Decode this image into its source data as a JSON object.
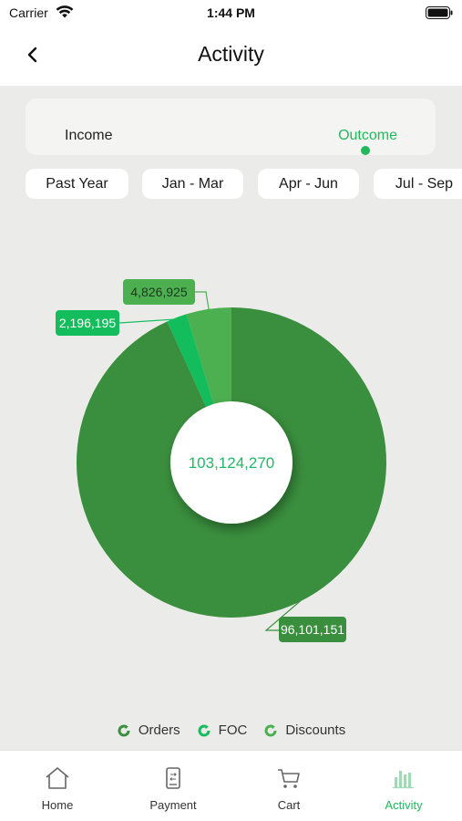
{
  "status": {
    "carrier": "Carrier",
    "time": "1:44 PM"
  },
  "header": {
    "title": "Activity"
  },
  "segments": {
    "income": "Income",
    "outcome": "Outcome",
    "selected": "outcome"
  },
  "filters": [
    "Past Year",
    "Jan - Mar",
    "Apr - Jun",
    "Jul - Sep"
  ],
  "chart_data": {
    "type": "pie",
    "center_label": "103,124,270",
    "series": [
      {
        "name": "Orders",
        "value": 96101151,
        "label": "96,101,151",
        "color": "#3a8f3e"
      },
      {
        "name": "FOC",
        "value": 2196195,
        "label": "2,196,195",
        "color": "#14bd5c"
      },
      {
        "name": "Discounts",
        "value": 4826925,
        "label": "4,826,925",
        "color": "#4caf50"
      }
    ]
  },
  "legend": [
    "Orders",
    "FOC",
    "Discounts"
  ],
  "tabs": [
    {
      "label": "Home",
      "icon": "home-icon"
    },
    {
      "label": "Payment",
      "icon": "payment-icon"
    },
    {
      "label": "Cart",
      "icon": "cart-icon"
    },
    {
      "label": "Activity",
      "icon": "activity-icon",
      "active": true
    }
  ],
  "colors": {
    "accent": "#22b85c",
    "background": "#ebecea"
  }
}
